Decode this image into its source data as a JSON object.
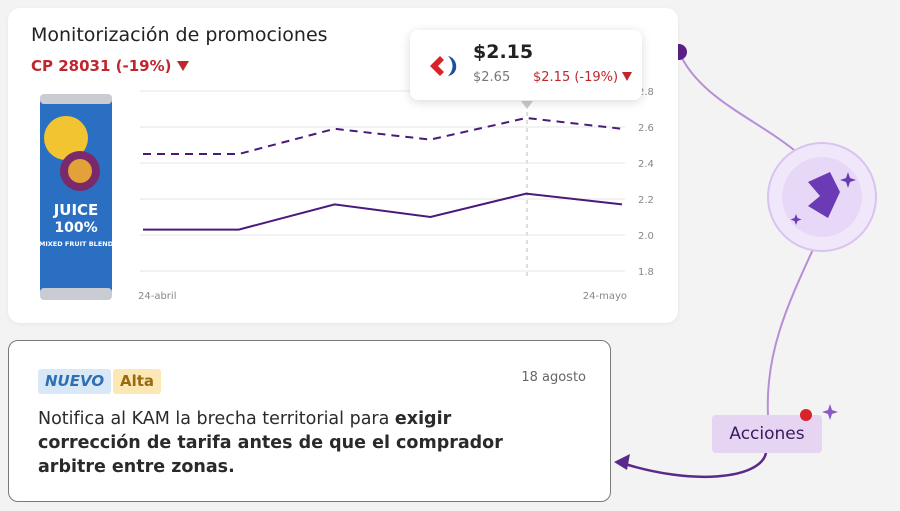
{
  "card": {
    "title": "Monitorización de promociones",
    "subtitle": "CP 28031 (-19%)"
  },
  "product": {
    "label_lines": [
      "JUICE",
      "100%",
      "MIXED FRUIT BLEND"
    ]
  },
  "chart_data": {
    "type": "line",
    "categories": [
      "24-abril",
      null,
      null,
      null,
      null,
      "24-mayo"
    ],
    "series": [
      {
        "color": "#4a1a7a",
        "dashed": true,
        "values": [
          2.45,
          2.45,
          2.59,
          2.53,
          2.65,
          2.59
        ]
      },
      {
        "color": "#4a1a7a",
        "dashed": false,
        "values": [
          2.03,
          2.03,
          2.17,
          2.1,
          2.23,
          2.17
        ]
      }
    ],
    "ylim": [
      1.8,
      2.8
    ],
    "yticks": [
      1.8,
      {
        "value": 2,
        "label": "2.0"
      },
      2.2,
      2.4,
      2.6,
      2.8
    ],
    "grid": true
  },
  "tooltip": {
    "price": "$2.15",
    "previous": "$2.65",
    "change": "$2.15 (-19%)"
  },
  "alert": {
    "badges": [
      "NUEVO",
      "Alta"
    ],
    "date": "18 agosto",
    "message_plain": "Notifica al KAM la brecha territorial para ",
    "message_bold": "exigir corrección de tarifa antes de que el comprador arbitre entre zonas."
  },
  "actions_label": "Acciones"
}
